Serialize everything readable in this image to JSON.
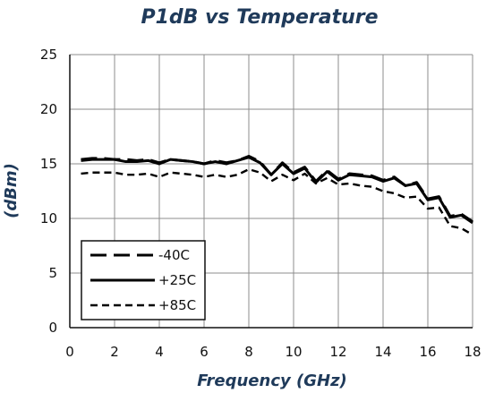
{
  "chart_data": {
    "type": "line",
    "title": "P1dB vs Temperature",
    "xlabel": "Frequency (GHz)",
    "ylabel": "(dBm)",
    "xlim": [
      0,
      18
    ],
    "ylim": [
      0,
      25
    ],
    "xticks": [
      0,
      2,
      4,
      6,
      8,
      10,
      12,
      14,
      16,
      18
    ],
    "yticks": [
      0,
      5,
      10,
      15,
      20,
      25
    ],
    "grid": true,
    "legend_position": "bottom-left",
    "series": [
      {
        "name": "-40C",
        "style": "long-dash",
        "x": [
          0.5,
          1,
          1.5,
          2,
          2.5,
          3,
          3.5,
          4,
          4.5,
          5,
          5.5,
          6,
          6.5,
          7,
          7.5,
          8,
          8.5,
          9,
          9.5,
          10,
          10.5,
          11,
          11.5,
          12,
          12.5,
          13,
          13.5,
          14,
          14.5,
          15,
          15.5,
          16,
          16.5,
          17,
          17.5,
          18
        ],
        "values": [
          15.4,
          15.5,
          15.5,
          15.4,
          15.4,
          15.3,
          15.4,
          15.1,
          15.4,
          15.3,
          15.2,
          15.0,
          15.3,
          15.1,
          15.3,
          15.7,
          15.2,
          14.0,
          15.1,
          14.2,
          14.7,
          13.4,
          14.4,
          13.6,
          14.1,
          14.0,
          13.9,
          13.5,
          13.8,
          13.0,
          13.3,
          11.8,
          12.0,
          10.2,
          10.4,
          9.7
        ]
      },
      {
        "name": "+25C",
        "style": "solid",
        "x": [
          0.5,
          1,
          1.5,
          2,
          2.5,
          3,
          3.5,
          4,
          4.5,
          5,
          5.5,
          6,
          6.5,
          7,
          7.5,
          8,
          8.5,
          9,
          9.5,
          10,
          10.5,
          11,
          11.5,
          12,
          12.5,
          13,
          13.5,
          14,
          14.5,
          15,
          15.5,
          16,
          16.5,
          17,
          17.5,
          18
        ],
        "values": [
          15.3,
          15.4,
          15.4,
          15.4,
          15.2,
          15.2,
          15.3,
          15.0,
          15.4,
          15.3,
          15.2,
          15.0,
          15.2,
          15.0,
          15.3,
          15.6,
          15.1,
          14.0,
          15.0,
          14.1,
          14.6,
          13.3,
          14.3,
          13.5,
          14.0,
          13.9,
          13.8,
          13.4,
          13.7,
          13.0,
          13.2,
          11.7,
          11.9,
          10.1,
          10.3,
          9.6
        ]
      },
      {
        "name": "+85C",
        "style": "short-dash",
        "x": [
          0.5,
          1,
          1.5,
          2,
          2.5,
          3,
          3.5,
          4,
          4.5,
          5,
          5.5,
          6,
          6.5,
          7,
          7.5,
          8,
          8.5,
          9,
          9.5,
          10,
          10.5,
          11,
          11.5,
          12,
          12.5,
          13,
          13.5,
          14,
          14.5,
          15,
          15.5,
          16,
          16.5,
          17,
          17.5,
          18
        ],
        "values": [
          14.1,
          14.2,
          14.2,
          14.2,
          14.0,
          14.0,
          14.1,
          13.8,
          14.2,
          14.1,
          14.0,
          13.8,
          14.0,
          13.8,
          14.0,
          14.5,
          14.2,
          13.4,
          14.0,
          13.5,
          14.1,
          13.2,
          13.7,
          13.1,
          13.2,
          13.0,
          12.9,
          12.5,
          12.3,
          11.9,
          12.0,
          10.9,
          11.0,
          9.3,
          9.1,
          8.5
        ]
      }
    ]
  }
}
